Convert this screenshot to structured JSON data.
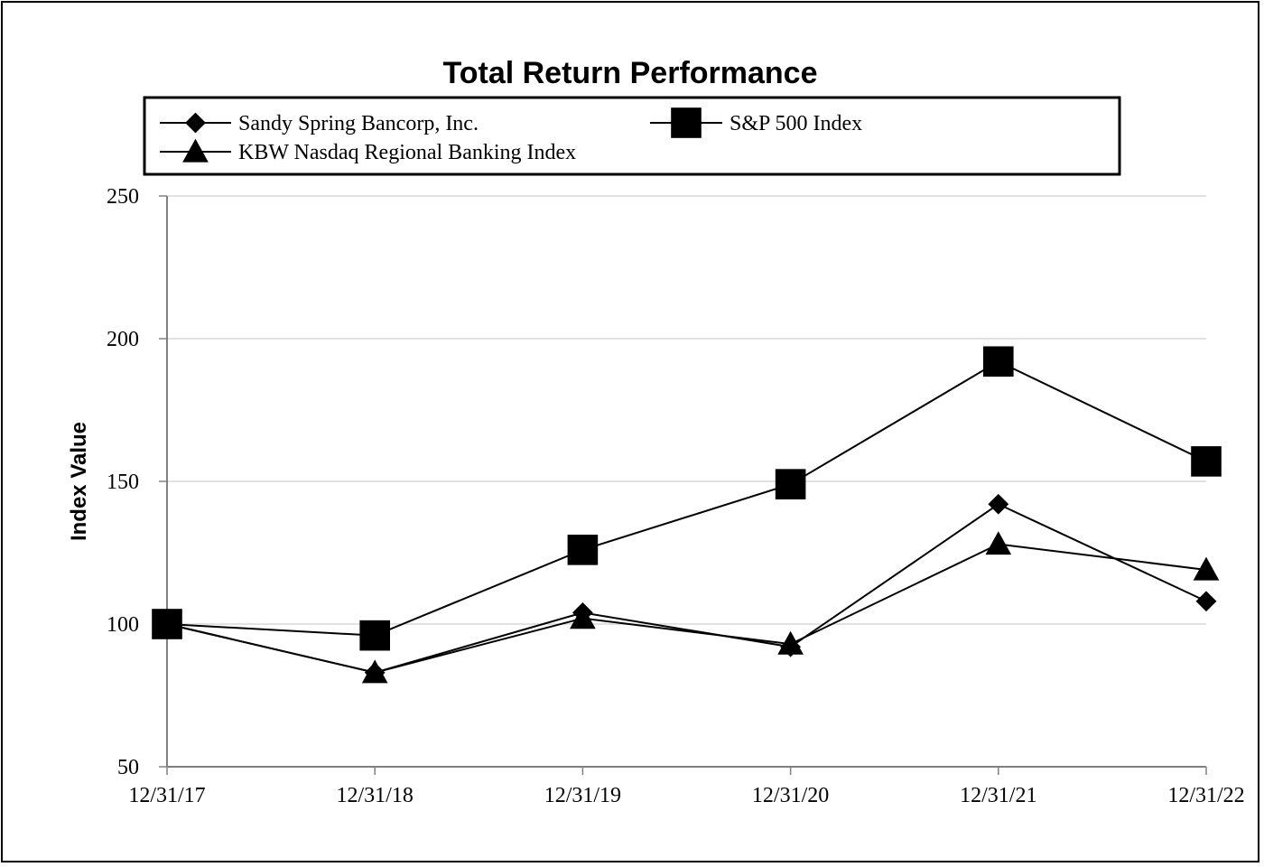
{
  "chart_data": {
    "type": "line",
    "title": "Total Return Performance",
    "xlabel": "",
    "ylabel": "Index Value",
    "categories": [
      "12/31/17",
      "12/31/18",
      "12/31/19",
      "12/31/20",
      "12/31/21",
      "12/31/22"
    ],
    "ylim": [
      50,
      250
    ],
    "yticks": [
      50,
      100,
      150,
      200,
      250
    ],
    "grid": true,
    "legend_position": "top",
    "series": [
      {
        "name": "Sandy Spring Bancorp, Inc.",
        "marker": "diamond",
        "color": "#000000",
        "values": [
          100,
          83,
          104,
          92,
          142,
          108
        ]
      },
      {
        "name": "S&P 500 Index",
        "marker": "square",
        "color": "#000000",
        "values": [
          100,
          96,
          126,
          149,
          192,
          157
        ]
      },
      {
        "name": "KBW Nasdaq Regional Banking Index",
        "marker": "triangle",
        "color": "#000000",
        "values": [
          100,
          83,
          102,
          93,
          128,
          119
        ]
      }
    ]
  }
}
